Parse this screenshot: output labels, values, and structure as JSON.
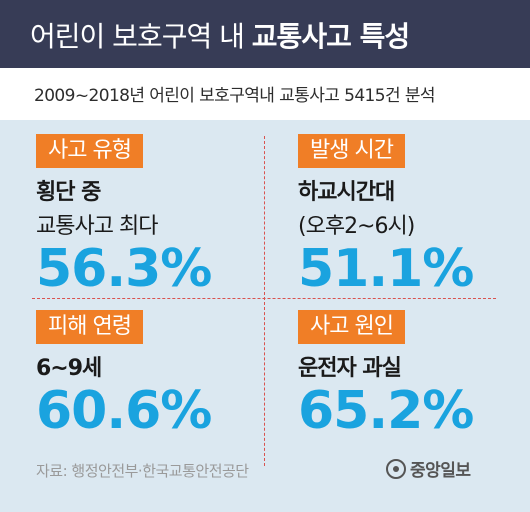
{
  "header": {
    "title_light": "어린이 보호구역 내",
    "title_bold": "교통사고 특성"
  },
  "subtitle": "2009~2018년 어린이 보호구역내 교통사고 5415건 분석",
  "cards": [
    {
      "tag": "사고 유형",
      "line1": "횡단 중",
      "line2": "교통사고 최다",
      "value": "56.3%"
    },
    {
      "tag": "발생 시간",
      "line1": "하교시간대",
      "line2": "(오후2~6시)",
      "value": "51.1%"
    },
    {
      "tag": "피해 연령",
      "line1": "6~9세",
      "line2": "",
      "value": "60.6%"
    },
    {
      "tag": "사고 원인",
      "line1": "운전자 과실",
      "line2": "",
      "value": "65.2%"
    }
  ],
  "footer": {
    "source": "자료: 행정안전부·한국교통안전공단",
    "logo": "중앙일보"
  },
  "colors": {
    "header_bg": "#373c56",
    "panel_bg": "#dbe8f1",
    "tag_bg": "#f07e26",
    "value": "#1aa3df",
    "divider": "#d9534f"
  }
}
